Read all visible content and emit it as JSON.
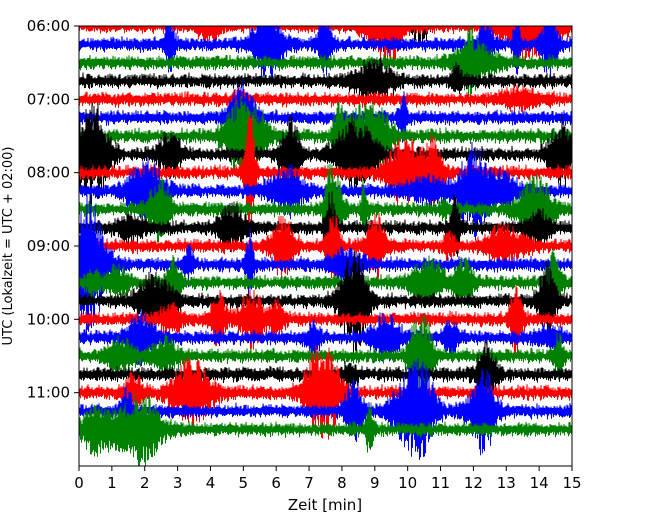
{
  "chart_data": {
    "type": "line",
    "title": "",
    "xlabel": "Zeit  [min]",
    "ylabel": "UTC (Lokalzeit = UTC + 02:00)",
    "xlim": [
      0,
      15
    ],
    "ylim": [
      "06:00",
      "12:00"
    ],
    "x_ticks": [
      "0",
      "1",
      "2",
      "3",
      "4",
      "5",
      "6",
      "7",
      "8",
      "9",
      "10",
      "11",
      "12",
      "13",
      "14",
      "15"
    ],
    "y_ticks": [
      "06:00",
      "07:00",
      "08:00",
      "09:00",
      "10:00",
      "11:00"
    ],
    "trace_interval_min": 15,
    "trace_colors": [
      "#000000",
      "#ff0000",
      "#0000ff",
      "#008000"
    ],
    "start_time": "05:45",
    "trace_count": 24,
    "grid": false,
    "legend": "none"
  }
}
